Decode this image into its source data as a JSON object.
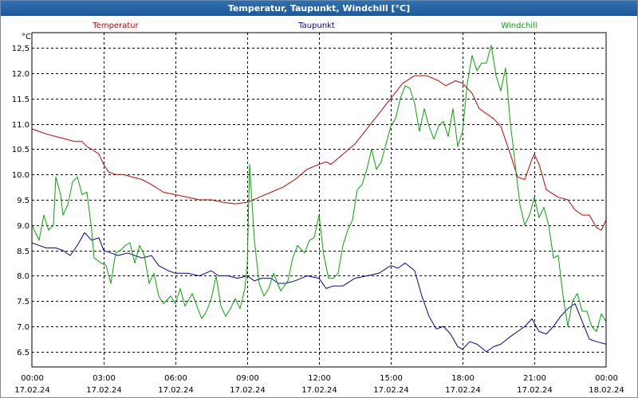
{
  "chart_data": {
    "type": "line",
    "title": "Temperatur, Taupunkt, Windchill [°C]",
    "ylabel": "°C",
    "ylim": [
      6.2,
      12.8
    ],
    "yticks": [
      "12,5",
      "12.0",
      "11.5",
      "11.0",
      "10.5",
      "10.0",
      "9.5",
      "9.0",
      "8.5",
      "8.0",
      "7.5",
      "7.0",
      "6.5"
    ],
    "ytick_values": [
      12.5,
      12.0,
      11.5,
      11.0,
      10.5,
      10.0,
      9.5,
      9.0,
      8.5,
      8.0,
      7.5,
      7.0,
      6.5
    ],
    "xlim_hours": [
      0,
      24
    ],
    "xticks": [
      {
        "h": 0,
        "time": "00:00",
        "date": "17.02.24"
      },
      {
        "h": 3,
        "time": "03:00",
        "date": "17.02.24"
      },
      {
        "h": 6,
        "time": "06:00",
        "date": "17.02.24"
      },
      {
        "h": 9,
        "time": "09:00",
        "date": "17.02.24"
      },
      {
        "h": 12,
        "time": "12:00",
        "date": "17.02.24"
      },
      {
        "h": 15,
        "time": "15:00",
        "date": "17.02.24"
      },
      {
        "h": 18,
        "time": "18:00",
        "date": "17.02.24"
      },
      {
        "h": 21,
        "time": "21:00",
        "date": "17.02.24"
      },
      {
        "h": 24,
        "time": "00:00",
        "date": "18.02.24"
      }
    ],
    "grid": true,
    "series": [
      {
        "name": "Temperatur",
        "color": "#cc0000",
        "points": [
          [
            0,
            10.9
          ],
          [
            0.3,
            10.85
          ],
          [
            0.6,
            10.8
          ],
          [
            1,
            10.75
          ],
          [
            1.4,
            10.7
          ],
          [
            1.8,
            10.65
          ],
          [
            2.1,
            10.65
          ],
          [
            2.3,
            10.55
          ],
          [
            2.5,
            10.5
          ],
          [
            2.8,
            10.4
          ],
          [
            3.0,
            10.2
          ],
          [
            3.2,
            10.05
          ],
          [
            3.5,
            10.0
          ],
          [
            3.8,
            10.0
          ],
          [
            4.2,
            9.95
          ],
          [
            4.6,
            9.9
          ],
          [
            5.0,
            9.8
          ],
          [
            5.5,
            9.65
          ],
          [
            6.0,
            9.6
          ],
          [
            6.5,
            9.55
          ],
          [
            7.0,
            9.5
          ],
          [
            7.5,
            9.5
          ],
          [
            8.0,
            9.45
          ],
          [
            8.5,
            9.42
          ],
          [
            9.0,
            9.45
          ],
          [
            9.5,
            9.55
          ],
          [
            10.0,
            9.65
          ],
          [
            10.5,
            9.75
          ],
          [
            11.0,
            9.9
          ],
          [
            11.5,
            10.1
          ],
          [
            12.0,
            10.2
          ],
          [
            12.3,
            10.25
          ],
          [
            12.5,
            10.2
          ],
          [
            13.0,
            10.4
          ],
          [
            13.5,
            10.6
          ],
          [
            14.0,
            10.9
          ],
          [
            14.5,
            11.2
          ],
          [
            15.0,
            11.5
          ],
          [
            15.5,
            11.8
          ],
          [
            16.0,
            11.95
          ],
          [
            16.5,
            11.95
          ],
          [
            17.0,
            11.85
          ],
          [
            17.3,
            11.75
          ],
          [
            17.7,
            11.85
          ],
          [
            18.0,
            11.8
          ],
          [
            18.4,
            11.6
          ],
          [
            18.7,
            11.3
          ],
          [
            19.0,
            11.2
          ],
          [
            19.3,
            11.1
          ],
          [
            19.6,
            10.95
          ],
          [
            20.0,
            10.4
          ],
          [
            20.3,
            9.95
          ],
          [
            20.6,
            9.9
          ],
          [
            20.9,
            10.3
          ],
          [
            21.0,
            10.4
          ],
          [
            21.2,
            10.2
          ],
          [
            21.5,
            9.7
          ],
          [
            22.0,
            9.55
          ],
          [
            22.4,
            9.5
          ],
          [
            22.7,
            9.3
          ],
          [
            23.0,
            9.2
          ],
          [
            23.3,
            9.2
          ],
          [
            23.6,
            8.95
          ],
          [
            23.8,
            8.9
          ],
          [
            24.0,
            9.1
          ]
        ]
      },
      {
        "name": "Taupunkt",
        "color": "#0000aa",
        "points": [
          [
            0,
            8.65
          ],
          [
            0.3,
            8.6
          ],
          [
            0.6,
            8.55
          ],
          [
            1,
            8.55
          ],
          [
            1.3,
            8.5
          ],
          [
            1.6,
            8.4
          ],
          [
            1.9,
            8.6
          ],
          [
            2.2,
            8.85
          ],
          [
            2.5,
            8.7
          ],
          [
            2.8,
            8.75
          ],
          [
            3.0,
            8.5
          ],
          [
            3.3,
            8.45
          ],
          [
            3.6,
            8.4
          ],
          [
            4.0,
            8.45
          ],
          [
            4.3,
            8.4
          ],
          [
            4.6,
            8.35
          ],
          [
            5.0,
            8.4
          ],
          [
            5.3,
            8.2
          ],
          [
            5.7,
            8.1
          ],
          [
            6.0,
            8.05
          ],
          [
            6.5,
            8.05
          ],
          [
            7.0,
            8.0
          ],
          [
            7.5,
            8.1
          ],
          [
            7.8,
            8.0
          ],
          [
            8.2,
            8.0
          ],
          [
            8.6,
            7.95
          ],
          [
            9.0,
            8.0
          ],
          [
            9.3,
            7.9
          ],
          [
            9.6,
            7.95
          ],
          [
            10.0,
            7.95
          ],
          [
            10.3,
            7.85
          ],
          [
            10.6,
            7.85
          ],
          [
            11.0,
            7.9
          ],
          [
            11.5,
            8.0
          ],
          [
            12.0,
            7.95
          ],
          [
            12.3,
            7.75
          ],
          [
            12.6,
            7.8
          ],
          [
            13.0,
            7.8
          ],
          [
            13.5,
            7.95
          ],
          [
            14.0,
            8.0
          ],
          [
            14.5,
            8.05
          ],
          [
            15.0,
            8.2
          ],
          [
            15.3,
            8.15
          ],
          [
            15.6,
            8.25
          ],
          [
            16.0,
            8.1
          ],
          [
            16.3,
            7.6
          ],
          [
            16.6,
            7.2
          ],
          [
            16.9,
            6.95
          ],
          [
            17.2,
            7.0
          ],
          [
            17.5,
            6.85
          ],
          [
            17.8,
            6.6
          ],
          [
            18.0,
            6.55
          ],
          [
            18.3,
            6.7
          ],
          [
            18.6,
            6.65
          ],
          [
            19.0,
            6.5
          ],
          [
            19.3,
            6.6
          ],
          [
            19.6,
            6.65
          ],
          [
            20.0,
            6.8
          ],
          [
            20.3,
            6.9
          ],
          [
            20.6,
            7.0
          ],
          [
            20.9,
            7.15
          ],
          [
            21.2,
            6.9
          ],
          [
            21.5,
            6.85
          ],
          [
            21.8,
            7.0
          ],
          [
            22.1,
            7.2
          ],
          [
            22.4,
            7.35
          ],
          [
            22.7,
            7.45
          ],
          [
            23.0,
            7.1
          ],
          [
            23.3,
            6.75
          ],
          [
            23.6,
            6.7
          ],
          [
            24.0,
            6.65
          ]
        ]
      },
      {
        "name": "Windchill",
        "color": "#00aa00",
        "points": [
          [
            0,
            9.0
          ],
          [
            0.3,
            8.7
          ],
          [
            0.5,
            9.2
          ],
          [
            0.7,
            8.9
          ],
          [
            0.9,
            9.0
          ],
          [
            1.0,
            9.95
          ],
          [
            1.2,
            9.6
          ],
          [
            1.3,
            9.2
          ],
          [
            1.5,
            9.4
          ],
          [
            1.7,
            9.85
          ],
          [
            1.9,
            9.95
          ],
          [
            2.1,
            9.6
          ],
          [
            2.3,
            9.65
          ],
          [
            2.5,
            8.9
          ],
          [
            2.6,
            8.35
          ],
          [
            2.9,
            8.25
          ],
          [
            3.1,
            8.2
          ],
          [
            3.3,
            7.85
          ],
          [
            3.5,
            8.45
          ],
          [
            3.7,
            8.5
          ],
          [
            3.9,
            8.6
          ],
          [
            4.1,
            8.65
          ],
          [
            4.3,
            8.25
          ],
          [
            4.5,
            8.6
          ],
          [
            4.7,
            8.4
          ],
          [
            4.9,
            7.85
          ],
          [
            5.1,
            8.05
          ],
          [
            5.3,
            7.6
          ],
          [
            5.5,
            7.45
          ],
          [
            5.8,
            7.6
          ],
          [
            6.0,
            7.45
          ],
          [
            6.2,
            7.75
          ],
          [
            6.4,
            7.4
          ],
          [
            6.7,
            7.65
          ],
          [
            6.9,
            7.4
          ],
          [
            7.1,
            7.15
          ],
          [
            7.3,
            7.3
          ],
          [
            7.5,
            7.55
          ],
          [
            7.7,
            8.0
          ],
          [
            7.9,
            7.4
          ],
          [
            8.1,
            7.2
          ],
          [
            8.3,
            7.35
          ],
          [
            8.5,
            7.55
          ],
          [
            8.7,
            7.35
          ],
          [
            8.9,
            7.75
          ],
          [
            9.0,
            8.2
          ],
          [
            9.1,
            10.2
          ],
          [
            9.3,
            8.7
          ],
          [
            9.5,
            7.85
          ],
          [
            9.7,
            7.6
          ],
          [
            9.9,
            7.75
          ],
          [
            10.1,
            8.05
          ],
          [
            10.4,
            7.7
          ],
          [
            10.7,
            7.9
          ],
          [
            10.9,
            8.35
          ],
          [
            11.1,
            8.6
          ],
          [
            11.4,
            8.45
          ],
          [
            11.6,
            8.7
          ],
          [
            11.8,
            8.75
          ],
          [
            12.0,
            9.2
          ],
          [
            12.2,
            8.4
          ],
          [
            12.4,
            7.95
          ],
          [
            12.6,
            7.95
          ],
          [
            12.8,
            8.05
          ],
          [
            13.0,
            8.6
          ],
          [
            13.2,
            8.9
          ],
          [
            13.4,
            9.1
          ],
          [
            13.6,
            9.7
          ],
          [
            13.8,
            9.8
          ],
          [
            14.0,
            10.1
          ],
          [
            14.2,
            10.5
          ],
          [
            14.4,
            10.1
          ],
          [
            14.6,
            10.25
          ],
          [
            14.8,
            10.6
          ],
          [
            15.0,
            10.95
          ],
          [
            15.2,
            11.1
          ],
          [
            15.4,
            11.5
          ],
          [
            15.6,
            11.75
          ],
          [
            15.8,
            11.7
          ],
          [
            16.0,
            11.4
          ],
          [
            16.2,
            10.85
          ],
          [
            16.4,
            11.3
          ],
          [
            16.6,
            10.95
          ],
          [
            16.8,
            10.7
          ],
          [
            17.0,
            10.95
          ],
          [
            17.2,
            11.05
          ],
          [
            17.4,
            10.75
          ],
          [
            17.6,
            11.3
          ],
          [
            17.8,
            10.55
          ],
          [
            18.0,
            10.85
          ],
          [
            18.2,
            11.8
          ],
          [
            18.4,
            12.35
          ],
          [
            18.6,
            12.05
          ],
          [
            18.8,
            12.2
          ],
          [
            19.0,
            12.2
          ],
          [
            19.2,
            12.55
          ],
          [
            19.4,
            11.95
          ],
          [
            19.6,
            11.65
          ],
          [
            19.8,
            12.1
          ],
          [
            20.0,
            11.0
          ],
          [
            20.2,
            10.2
          ],
          [
            20.4,
            9.4
          ],
          [
            20.6,
            9.0
          ],
          [
            20.8,
            9.2
          ],
          [
            21.0,
            9.55
          ],
          [
            21.2,
            9.15
          ],
          [
            21.4,
            9.35
          ],
          [
            21.6,
            9.0
          ],
          [
            21.8,
            8.35
          ],
          [
            22.0,
            8.4
          ],
          [
            22.2,
            7.6
          ],
          [
            22.4,
            7.0
          ],
          [
            22.6,
            7.5
          ],
          [
            22.8,
            7.65
          ],
          [
            23.0,
            7.3
          ],
          [
            23.2,
            7.3
          ],
          [
            23.4,
            7.0
          ],
          [
            23.6,
            6.9
          ],
          [
            23.8,
            7.25
          ],
          [
            24.0,
            7.1
          ]
        ]
      }
    ]
  }
}
